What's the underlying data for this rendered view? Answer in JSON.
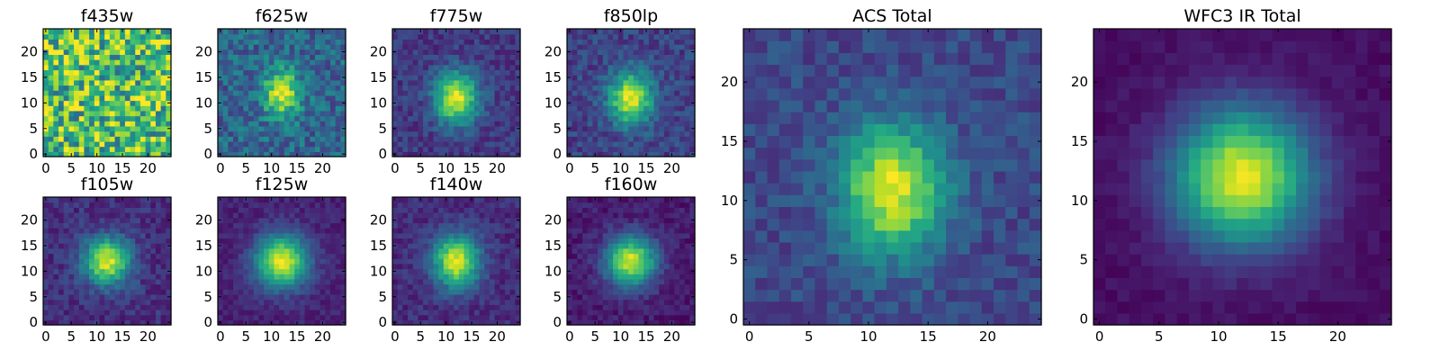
{
  "figure": {
    "background": "#ffffff",
    "colormap": "viridis"
  },
  "chart_data": [
    {
      "type": "heatmap",
      "title": "f435w",
      "shape": [
        25,
        25
      ],
      "xlim": [
        -0.5,
        24.5
      ],
      "ylim": [
        -0.5,
        24.5
      ],
      "xticks": [
        0,
        5,
        10,
        15,
        20
      ],
      "yticks": [
        0,
        5,
        10,
        15,
        20
      ],
      "x_tick_labels": [
        "0",
        "5",
        "10",
        "15",
        "20"
      ],
      "y_tick_labels": [
        "0",
        "5",
        "10",
        "15",
        "20"
      ],
      "field": {
        "model": "noise",
        "peak_x": 12,
        "peak_y": 12,
        "sigma_x": 3,
        "sigma_y": 3,
        "amplitude": 0.0,
        "background": 0.7,
        "noise": 0.22,
        "seed": 11
      }
    },
    {
      "type": "heatmap",
      "title": "f625w",
      "shape": [
        25,
        25
      ],
      "xlim": [
        -0.5,
        24.5
      ],
      "ylim": [
        -0.5,
        24.5
      ],
      "xticks": [
        0,
        5,
        10,
        15,
        20
      ],
      "yticks": [
        0,
        5,
        10,
        15,
        20
      ],
      "x_tick_labels": [
        "0",
        "5",
        "10",
        "15",
        "20"
      ],
      "y_tick_labels": [
        "0",
        "5",
        "10",
        "15",
        "20"
      ],
      "field": {
        "model": "gaussian",
        "peak_x": 12,
        "peak_y": 12,
        "sigma_x": 2.4,
        "sigma_y": 3.2,
        "amplitude": 0.65,
        "background": 0.33,
        "noise": 0.16,
        "seed": 23
      }
    },
    {
      "type": "heatmap",
      "title": "f775w",
      "shape": [
        25,
        25
      ],
      "xlim": [
        -0.5,
        24.5
      ],
      "ylim": [
        -0.5,
        24.5
      ],
      "xticks": [
        0,
        5,
        10,
        15,
        20
      ],
      "yticks": [
        0,
        5,
        10,
        15,
        20
      ],
      "x_tick_labels": [
        "0",
        "5",
        "10",
        "15",
        "20"
      ],
      "y_tick_labels": [
        "0",
        "5",
        "10",
        "15",
        "20"
      ],
      "field": {
        "model": "gaussian",
        "peak_x": 12,
        "peak_y": 11,
        "sigma_x": 3.0,
        "sigma_y": 3.6,
        "amplitude": 0.78,
        "background": 0.17,
        "noise": 0.1,
        "seed": 37
      }
    },
    {
      "type": "heatmap",
      "title": "f850lp",
      "shape": [
        25,
        25
      ],
      "xlim": [
        -0.5,
        24.5
      ],
      "ylim": [
        -0.5,
        24.5
      ],
      "xticks": [
        0,
        5,
        10,
        15,
        20
      ],
      "yticks": [
        0,
        5,
        10,
        15,
        20
      ],
      "x_tick_labels": [
        "0",
        "5",
        "10",
        "15",
        "20"
      ],
      "y_tick_labels": [
        "0",
        "5",
        "10",
        "15",
        "20"
      ],
      "field": {
        "model": "gaussian",
        "peak_x": 12,
        "peak_y": 11,
        "sigma_x": 3.0,
        "sigma_y": 3.6,
        "amplitude": 0.75,
        "background": 0.2,
        "noise": 0.11,
        "seed": 41
      }
    },
    {
      "type": "heatmap",
      "title": "f105w",
      "shape": [
        25,
        25
      ],
      "xlim": [
        -0.5,
        24.5
      ],
      "ylim": [
        -0.5,
        24.5
      ],
      "xticks": [
        0,
        5,
        10,
        15,
        20
      ],
      "yticks": [
        0,
        5,
        10,
        15,
        20
      ],
      "x_tick_labels": [
        "0",
        "5",
        "10",
        "15",
        "20"
      ],
      "y_tick_labels": [
        "0",
        "5",
        "10",
        "15",
        "20"
      ],
      "field": {
        "model": "gaussian",
        "peak_x": 12,
        "peak_y": 12,
        "sigma_x": 3.2,
        "sigma_y": 3.2,
        "amplitude": 0.8,
        "background": 0.14,
        "noise": 0.09,
        "seed": 53
      }
    },
    {
      "type": "heatmap",
      "title": "f125w",
      "shape": [
        25,
        25
      ],
      "xlim": [
        -0.5,
        24.5
      ],
      "ylim": [
        -0.5,
        24.5
      ],
      "xticks": [
        0,
        5,
        10,
        15,
        20
      ],
      "yticks": [
        0,
        5,
        10,
        15,
        20
      ],
      "x_tick_labels": [
        "0",
        "5",
        "10",
        "15",
        "20"
      ],
      "y_tick_labels": [
        "0",
        "5",
        "10",
        "15",
        "20"
      ],
      "field": {
        "model": "gaussian",
        "peak_x": 12,
        "peak_y": 12,
        "sigma_x": 3.6,
        "sigma_y": 3.6,
        "amplitude": 0.86,
        "background": 0.1,
        "noise": 0.06,
        "seed": 67
      }
    },
    {
      "type": "heatmap",
      "title": "f140w",
      "shape": [
        25,
        25
      ],
      "xlim": [
        -0.5,
        24.5
      ],
      "ylim": [
        -0.5,
        24.5
      ],
      "xticks": [
        0,
        5,
        10,
        15,
        20
      ],
      "yticks": [
        0,
        5,
        10,
        15,
        20
      ],
      "x_tick_labels": [
        "0",
        "5",
        "10",
        "15",
        "20"
      ],
      "y_tick_labels": [
        "0",
        "5",
        "10",
        "15",
        "20"
      ],
      "field": {
        "model": "gaussian",
        "peak_x": 12,
        "peak_y": 12,
        "sigma_x": 3.2,
        "sigma_y": 3.6,
        "amplitude": 0.82,
        "background": 0.13,
        "noise": 0.08,
        "seed": 71
      }
    },
    {
      "type": "heatmap",
      "title": "f160w",
      "shape": [
        25,
        25
      ],
      "xlim": [
        -0.5,
        24.5
      ],
      "ylim": [
        -0.5,
        24.5
      ],
      "xticks": [
        0,
        5,
        10,
        15,
        20
      ],
      "yticks": [
        0,
        5,
        10,
        15,
        20
      ],
      "x_tick_labels": [
        "0",
        "5",
        "10",
        "15",
        "20"
      ],
      "y_tick_labels": [
        "0",
        "5",
        "10",
        "15",
        "20"
      ],
      "field": {
        "model": "gaussian",
        "peak_x": 12,
        "peak_y": 12,
        "sigma_x": 3.4,
        "sigma_y": 3.4,
        "amplitude": 0.86,
        "background": 0.08,
        "noise": 0.07,
        "seed": 83
      }
    },
    {
      "type": "heatmap",
      "title": "ACS Total",
      "shape": [
        25,
        25
      ],
      "xlim": [
        -0.5,
        24.5
      ],
      "ylim": [
        -0.5,
        24.5
      ],
      "xticks": [
        0,
        5,
        10,
        15,
        20
      ],
      "yticks": [
        0,
        5,
        10,
        15,
        20
      ],
      "x_tick_labels": [
        "0",
        "5",
        "10",
        "15",
        "20"
      ],
      "y_tick_labels": [
        "0",
        "5",
        "10",
        "15",
        "20"
      ],
      "field": {
        "model": "gaussian",
        "peak_x": 12,
        "peak_y": 11,
        "sigma_x": 3.0,
        "sigma_y": 3.8,
        "amplitude": 0.74,
        "background": 0.22,
        "noise": 0.09,
        "seed": 97
      }
    },
    {
      "type": "heatmap",
      "title": "WFC3 IR Total",
      "shape": [
        25,
        25
      ],
      "xlim": [
        -0.5,
        24.5
      ],
      "ylim": [
        -0.5,
        24.5
      ],
      "xticks": [
        0,
        5,
        10,
        15,
        20
      ],
      "yticks": [
        0,
        5,
        10,
        15,
        20
      ],
      "x_tick_labels": [
        "0",
        "5",
        "10",
        "15",
        "20"
      ],
      "y_tick_labels": [
        "0",
        "5",
        "10",
        "15",
        "20"
      ],
      "field": {
        "model": "gaussian",
        "peak_x": 12,
        "peak_y": 12,
        "sigma_x": 4.0,
        "sigma_y": 4.0,
        "amplitude": 0.93,
        "background": 0.04,
        "noise": 0.035,
        "seed": 101
      }
    }
  ]
}
